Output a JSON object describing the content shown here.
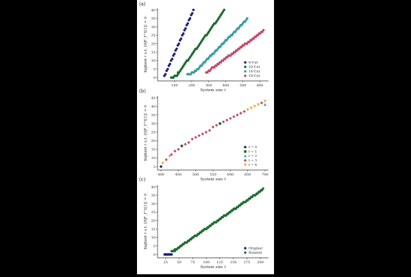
{
  "panel_labels": [
    "(a)",
    "(b)",
    "(c)"
  ],
  "chart_data": [
    {
      "type": "scatter",
      "ylabel": "highest ℓ s.t. ⟨0|F_f^t[1]⟩ ≈ 0",
      "xlabel": "System size ℓ",
      "xlim": [
        0,
        650
      ],
      "ylim": [
        -2,
        41
      ],
      "xticks": [
        100,
        200,
        300,
        400,
        500,
        600
      ],
      "yticks": [
        0,
        5,
        10,
        15,
        20,
        25,
        30,
        35,
        40
      ],
      "grid": false,
      "legend_position": "bottom-right",
      "legend_symbol": "●",
      "series": [
        {
          "name": "6-Cut",
          "color": "#1f1f7a",
          "segments": [
            {
              "x0": 40,
              "x1": 210,
              "y0": 1,
              "y1": 40
            }
          ]
        },
        {
          "name": "10-Cut",
          "color": "#1b6b2f",
          "segments": [
            {
              "x0": 80,
              "x1": 120,
              "y0": 0,
              "y1": 2
            },
            {
              "x0": 120,
              "x1": 390,
              "y0": 3,
              "y1": 40
            }
          ]
        },
        {
          "name": "14-Cut",
          "color": "#3a9e9e",
          "segments": [
            {
              "x0": 175,
              "x1": 220,
              "y0": 2,
              "y1": 4
            },
            {
              "x0": 220,
              "x1": 525,
              "y0": 4,
              "y1": 35
            }
          ]
        },
        {
          "name": "18-Cut",
          "color": "#c04b6a",
          "segments": [
            {
              "x0": 285,
              "x1": 320,
              "y0": 3,
              "y1": 6
            },
            {
              "x0": 320,
              "x1": 620,
              "y0": 6,
              "y1": 28
            }
          ]
        }
      ]
    },
    {
      "type": "scatter",
      "ylabel": "highest ℓ s.t. ⟨0|F_f^t[1]⟩ ≈ 0",
      "xlabel": "System size ℓ",
      "xlim": [
        390,
        710
      ],
      "ylim": [
        3,
        46
      ],
      "xticks": [
        400,
        450,
        500,
        550,
        600,
        650,
        700
      ],
      "yticks": [
        5,
        10,
        15,
        20,
        25,
        30,
        35,
        40,
        45
      ],
      "grid": false,
      "legend_position": "bottom-right",
      "series": [
        {
          "name": "t = 0",
          "color": "#1f1f7a",
          "marker": "circle"
        },
        {
          "name": "t = 1",
          "color": "#1b6b2f",
          "marker": "square"
        },
        {
          "name": "t = 2",
          "color": "#3a9e9e",
          "marker": "triangle-up"
        },
        {
          "name": "t = 3",
          "color": "#c04b6a",
          "marker": "diamond"
        },
        {
          "name": "t = 4",
          "color": "#f0a020",
          "marker": "triangle-down"
        }
      ],
      "points": [
        {
          "x": 400,
          "y": 5,
          "t": 0
        },
        {
          "x": 405,
          "y": 7,
          "t": 4
        },
        {
          "x": 415,
          "y": 9,
          "t": 3
        },
        {
          "x": 425,
          "y": 11,
          "t": 4
        },
        {
          "x": 430,
          "y": 12,
          "t": 3
        },
        {
          "x": 440,
          "y": 14,
          "t": 3
        },
        {
          "x": 450,
          "y": 15,
          "t": 3
        },
        {
          "x": 460,
          "y": 17,
          "t": 1
        },
        {
          "x": 470,
          "y": 18,
          "t": 3
        },
        {
          "x": 480,
          "y": 19,
          "t": 3
        },
        {
          "x": 490,
          "y": 21,
          "t": 3
        },
        {
          "x": 500,
          "y": 22,
          "t": 3
        },
        {
          "x": 510,
          "y": 23,
          "t": 3
        },
        {
          "x": 520,
          "y": 24,
          "t": 3
        },
        {
          "x": 530,
          "y": 25,
          "t": 3
        },
        {
          "x": 540,
          "y": 26,
          "t": 3
        },
        {
          "x": 550,
          "y": 28,
          "t": 3
        },
        {
          "x": 560,
          "y": 29,
          "t": 3
        },
        {
          "x": 570,
          "y": 30,
          "t": 1
        },
        {
          "x": 580,
          "y": 31,
          "t": 3
        },
        {
          "x": 590,
          "y": 32,
          "t": 3
        },
        {
          "x": 600,
          "y": 33,
          "t": 3
        },
        {
          "x": 610,
          "y": 34,
          "t": 3
        },
        {
          "x": 620,
          "y": 35,
          "t": 3
        },
        {
          "x": 630,
          "y": 36,
          "t": 3
        },
        {
          "x": 640,
          "y": 37,
          "t": 3
        },
        {
          "x": 650,
          "y": 38,
          "t": 4
        },
        {
          "x": 660,
          "y": 39,
          "t": 4
        },
        {
          "x": 670,
          "y": 40,
          "t": 4
        },
        {
          "x": 680,
          "y": 41,
          "t": 4
        },
        {
          "x": 690,
          "y": 42,
          "t": 3
        },
        {
          "x": 700,
          "y": 43,
          "t": 4
        },
        {
          "x": 700,
          "y": 41,
          "t": 2
        }
      ]
    },
    {
      "type": "scatter",
      "ylabel": "highest ℓ s.t. ⟨0|F_f^t[1]⟩ ≈ 0",
      "xlabel": "System size ℓ",
      "xlim": [
        10,
        215
      ],
      "ylim": [
        -2,
        41
      ],
      "xticks": [
        25,
        50,
        75,
        100,
        125,
        150,
        175,
        200
      ],
      "yticks": [
        0,
        5,
        10,
        15,
        20,
        25,
        30,
        35,
        40
      ],
      "grid": false,
      "legend_position": "bottom-right",
      "series": [
        {
          "name": "Original",
          "color": "#1f1f7a",
          "marker": "circle",
          "segments": [
            {
              "x0": 23,
              "x1": 36,
              "y0": 0,
              "y1": 0
            }
          ]
        },
        {
          "name": "Rotated",
          "color": "#1b6b2f",
          "marker": "diamond",
          "segments": [
            {
              "x0": 36,
              "x1": 42,
              "y0": 2,
              "y1": 2
            },
            {
              "x0": 42,
              "x1": 205,
              "y0": 3,
              "y1": 39
            }
          ]
        }
      ]
    }
  ]
}
